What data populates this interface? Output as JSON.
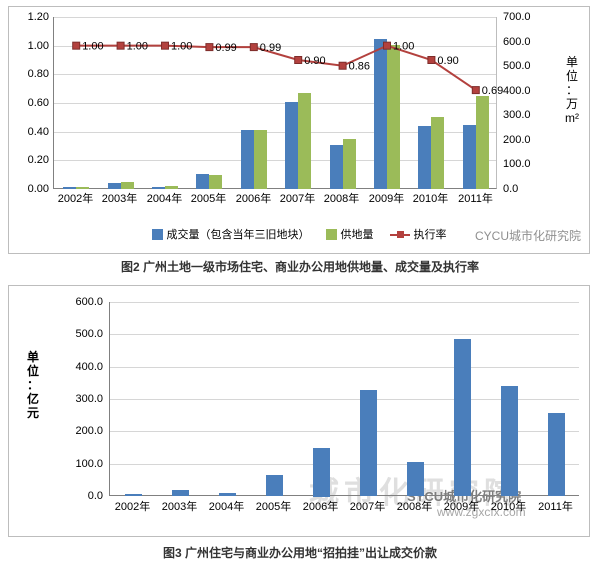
{
  "watermarks": {
    "top_chart": "CYCU城市化研究院",
    "bottom_chart": "SYCU城市化研究院",
    "bottom_chart_url": "www.zgxcfx.com",
    "bottom_chart_ghost": "城市化研究院"
  },
  "captions": {
    "figure2": "图2 广州土地一级市场住宅、商业办公用地供地量、成交量及执行率",
    "figure3": "图3 广州住宅与商业办公用地“招拍挂”出让成交价款"
  },
  "chart_data": [
    {
      "type": "bar",
      "subtype": "grouped-bars-with-line",
      "title": "",
      "categories": [
        "2002年",
        "2003年",
        "2004年",
        "2005年",
        "2006年",
        "2007年",
        "2008年",
        "2009年",
        "2010年",
        "2011年"
      ],
      "series": [
        {
          "name": "成交量（包含当年三旧地块）",
          "type": "bar",
          "axis": "right",
          "color": "#4a7ebb",
          "values": [
            10,
            25,
            10,
            60,
            240,
            355,
            180,
            610,
            255,
            262
          ]
        },
        {
          "name": "供地量",
          "type": "bar",
          "axis": "right",
          "color": "#9bbb59",
          "values": [
            10,
            28,
            12,
            55,
            240,
            390,
            205,
            585,
            292,
            380
          ]
        },
        {
          "name": "执行率",
          "type": "line",
          "axis": "left",
          "color": "#b3413e",
          "values": [
            1.0,
            1.0,
            1.0,
            0.99,
            0.99,
            0.9,
            0.86,
            1.0,
            0.9,
            0.69
          ],
          "point_labels": [
            "1.00",
            "1.00",
            "1.00",
            "0.99",
            "0.99",
            "0.90",
            "0.86",
            "1.00",
            "0.90",
            "0.69"
          ]
        }
      ],
      "left_axis": {
        "min": 0,
        "max": 1.2,
        "step": 0.2,
        "ticks": [
          "0.00",
          "0.20",
          "0.40",
          "0.60",
          "0.80",
          "1.00",
          "1.20"
        ]
      },
      "right_axis": {
        "min": 0,
        "max": 700,
        "step": 100,
        "ticks": [
          "0.0",
          "100.0",
          "200.0",
          "300.0",
          "400.0",
          "500.0",
          "600.0",
          "700.0"
        ],
        "title": "单位：万m²"
      },
      "grid": true,
      "legend_position": "bottom"
    },
    {
      "type": "bar",
      "title": "",
      "categories": [
        "2002年",
        "2003年",
        "2004年",
        "2005年",
        "2006年",
        "2007年",
        "2008年",
        "2009年",
        "2010年",
        "2011年"
      ],
      "values": [
        5,
        20,
        8,
        65,
        150,
        328,
        105,
        487,
        340,
        257
      ],
      "bar_color": "#4a7ebb",
      "y_axis": {
        "min": 0,
        "max": 600,
        "step": 100,
        "ticks": [
          "0.0",
          "100.0",
          "200.0",
          "300.0",
          "400.0",
          "500.0",
          "600.0"
        ],
        "title": "单位：亿元"
      },
      "grid": true,
      "legend_position": "none"
    }
  ]
}
